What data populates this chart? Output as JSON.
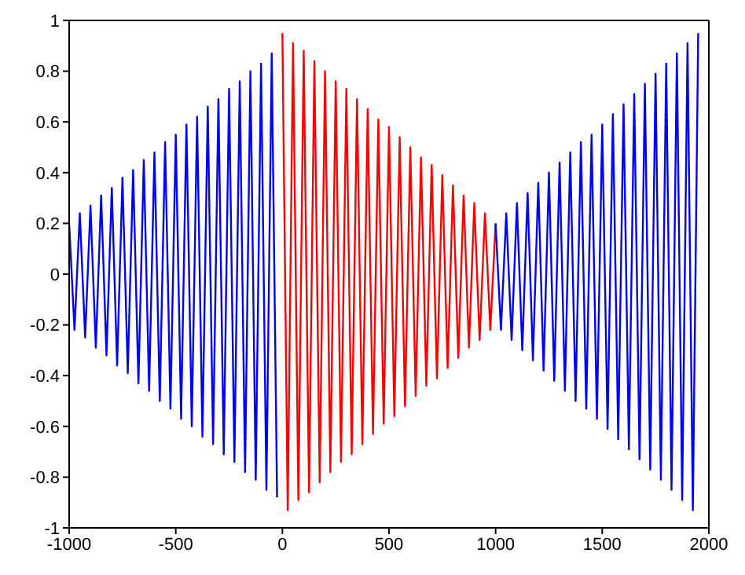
{
  "chart_data": {
    "type": "line",
    "xlim": [
      -1000,
      2000
    ],
    "xticks": [
      -1000,
      -500,
      0,
      500,
      1000,
      1500,
      2000
    ],
    "ylim": [
      -1,
      1
    ],
    "yticks": [
      -1,
      -0.8,
      -0.6,
      -0.4,
      -0.2,
      0,
      0.2,
      0.4,
      0.6,
      0.8,
      1
    ],
    "grid": false,
    "marker": "none",
    "line_style": "solid",
    "series": [
      {
        "color": "#0000ff",
        "x": [
          -1000,
          -975,
          -950,
          -925,
          -900,
          -875,
          -850,
          -825,
          -800,
          -775,
          -750,
          -725,
          -700,
          -675,
          -650,
          -625,
          -600,
          -575,
          -550,
          -525,
          -500,
          -475,
          -450,
          -425,
          -400,
          -375,
          -350,
          -325,
          -300,
          -275,
          -250,
          -225,
          -200,
          -175,
          -150,
          -125,
          -100,
          -75,
          -50,
          -25
        ],
        "values": [
          0.2,
          -0.22,
          0.24,
          -0.25,
          0.27,
          -0.29,
          0.31,
          -0.32,
          0.34,
          -0.36,
          0.38,
          -0.39,
          0.41,
          -0.43,
          0.45,
          -0.46,
          0.48,
          -0.5,
          0.52,
          -0.53,
          0.55,
          -0.57,
          0.59,
          -0.6,
          0.62,
          -0.64,
          0.66,
          -0.67,
          0.69,
          -0.71,
          0.73,
          -0.74,
          0.76,
          -0.78,
          0.8,
          -0.81,
          0.83,
          -0.85,
          0.87,
          -0.88
        ]
      },
      {
        "color": "#ff0000",
        "x": [
          0,
          25,
          50,
          75,
          100,
          125,
          150,
          175,
          200,
          225,
          250,
          275,
          300,
          325,
          350,
          375,
          400,
          425,
          450,
          475,
          500,
          525,
          550,
          575,
          600,
          625,
          650,
          675,
          700,
          725,
          750,
          775,
          800,
          825,
          850,
          875,
          900,
          925,
          950,
          975,
          1000
        ],
        "values": [
          0.95,
          -0.93,
          0.91,
          -0.89,
          0.88,
          -0.86,
          0.84,
          -0.82,
          0.8,
          -0.78,
          0.76,
          -0.74,
          0.73,
          -0.71,
          0.69,
          -0.67,
          0.65,
          -0.63,
          0.61,
          -0.59,
          0.58,
          -0.56,
          0.54,
          -0.52,
          0.5,
          -0.48,
          0.46,
          -0.44,
          0.43,
          -0.41,
          0.39,
          -0.37,
          0.35,
          -0.33,
          0.31,
          -0.29,
          0.28,
          -0.26,
          0.24,
          -0.22,
          0.2
        ]
      },
      {
        "color": "#0000ff",
        "x": [
          1000,
          1025,
          1050,
          1075,
          1100,
          1125,
          1150,
          1175,
          1200,
          1225,
          1250,
          1275,
          1300,
          1325,
          1350,
          1375,
          1400,
          1425,
          1450,
          1475,
          1500,
          1525,
          1550,
          1575,
          1600,
          1625,
          1650,
          1675,
          1700,
          1725,
          1750,
          1775,
          1800,
          1825,
          1850,
          1875,
          1900,
          1925,
          1950
        ],
        "values": [
          0.2,
          -0.22,
          0.24,
          -0.26,
          0.28,
          -0.3,
          0.32,
          -0.34,
          0.36,
          -0.38,
          0.4,
          -0.42,
          0.44,
          -0.46,
          0.48,
          -0.5,
          0.52,
          -0.53,
          0.55,
          -0.57,
          0.59,
          -0.61,
          0.63,
          -0.65,
          0.67,
          -0.69,
          0.71,
          -0.73,
          0.75,
          -0.77,
          0.79,
          -0.81,
          0.83,
          -0.85,
          0.87,
          -0.89,
          0.91,
          -0.93,
          0.95
        ]
      }
    ]
  }
}
